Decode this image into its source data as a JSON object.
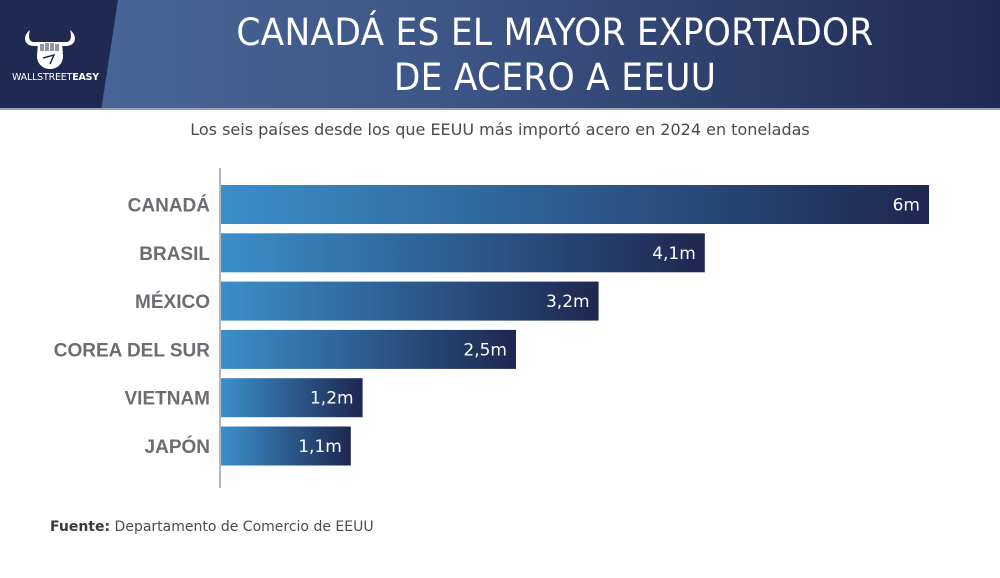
{
  "brand": {
    "logo_icon": "bull-horns-fist-icon",
    "name_regular": "WALLSTREET",
    "name_bold": "EASY"
  },
  "header": {
    "title_line1": "CANADÁ ES EL MAYOR EXPORTADOR",
    "title_line2": "DE ACERO A EEUU"
  },
  "colors": {
    "header_dark": "#1f2a52",
    "header_light": "#4d6a9c",
    "bar_start": "#3b8fcb",
    "bar_end": "#1e2750",
    "category_text": "#6b6d72"
  },
  "chart_data": {
    "type": "bar",
    "orientation": "horizontal",
    "title": "CANADÁ ES EL MAYOR EXPORTADOR DE ACERO A EEUU",
    "subtitle": "Los seis países desde los que EEUU más importó acero en 2024 en toneladas",
    "xlabel": "",
    "ylabel": "",
    "unit": "millones de toneladas",
    "xlim": [
      0,
      6
    ],
    "grid": false,
    "legend": "none",
    "categories": [
      "CANADÁ",
      "BRASIL",
      "MÉXICO",
      "COREA DEL SUR",
      "VIETNAM",
      "JAPÓN"
    ],
    "values": [
      6,
      4.1,
      3.2,
      2.5,
      1.2,
      1.1
    ],
    "value_labels": [
      "6m",
      "4,1m",
      "3,2m",
      "2,5m",
      "1,2m",
      "1,1m"
    ]
  },
  "footer": {
    "source_label": "Fuente:",
    "source_text": "Departamento de Comercio de EEUU"
  }
}
